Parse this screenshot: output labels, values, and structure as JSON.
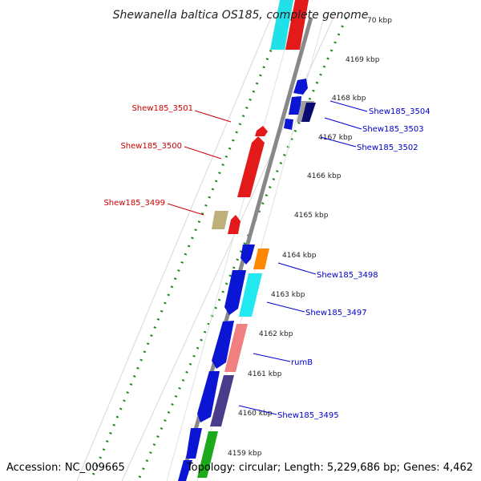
{
  "title": "Shewanella baltica OS185, complete genome",
  "accession": "Accession: NC_009665",
  "summary": "Topology: circular; Length: 5,229,686 bp; Genes: 4,462",
  "ticks": [
    "70 kbp",
    "4169 kbp",
    "4168 kbp",
    "4167 kbp",
    "4166 kbp",
    "4165 kbp",
    "4164 kbp",
    "4163 kbp",
    "4162 kbp",
    "4161 kbp",
    "4160 kbp",
    "4159 kbp"
  ],
  "left_labels": [
    "Shew185_3501",
    "Shew185_3500",
    "Shew185_3499"
  ],
  "right_labels": [
    "Shew185_3504",
    "Shew185_3503",
    "Shew185_3502",
    "Shew185_3498",
    "Shew185_3497",
    "rumB",
    "Shew185_3495"
  ],
  "colors": {
    "left_label": "#cc0000",
    "right_label": "#0000cc",
    "backbone": "#888888",
    "dotted_ring": "#1a8a1a"
  }
}
